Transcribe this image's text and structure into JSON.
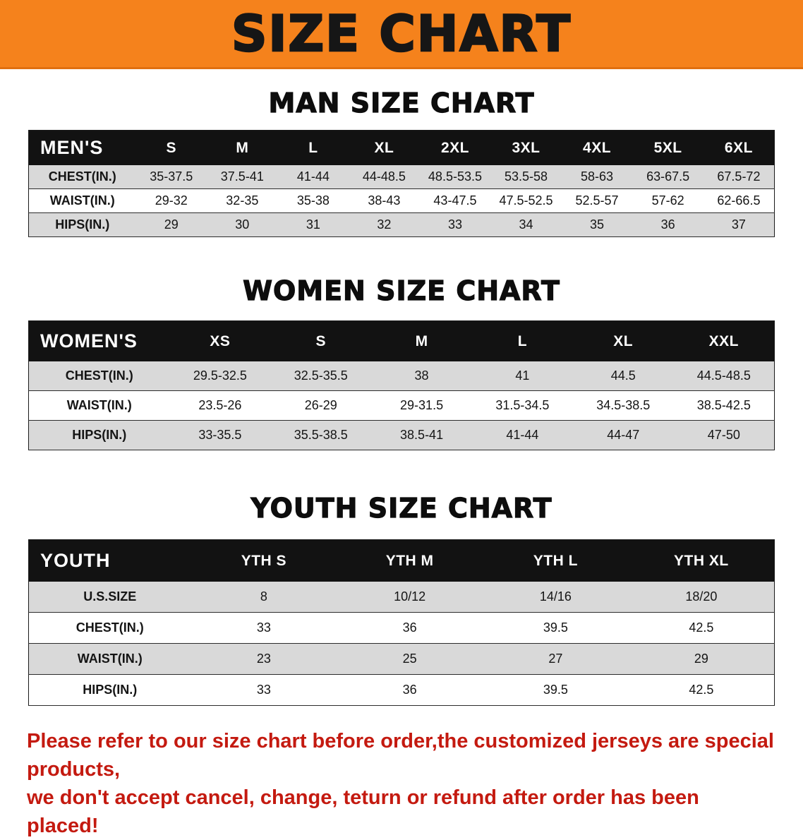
{
  "banner": {
    "title": "SIZE CHART"
  },
  "colors": {
    "banner_bg": "#f5821c",
    "table_header_bg": "#121212",
    "row_alt_bg": "#d9d9d9",
    "disclaimer_text": "#c41a10"
  },
  "sections": {
    "men": {
      "title": "MAN SIZE CHART",
      "table": {
        "header": [
          "MEN'S",
          "S",
          "M",
          "L",
          "XL",
          "2XL",
          "3XL",
          "4XL",
          "5XL",
          "6XL"
        ],
        "rows": [
          [
            "CHEST(IN.)",
            "35-37.5",
            "37.5-41",
            "41-44",
            "44-48.5",
            "48.5-53.5",
            "53.5-58",
            "58-63",
            "63-67.5",
            "67.5-72"
          ],
          [
            "WAIST(IN.)",
            "29-32",
            "32-35",
            "35-38",
            "38-43",
            "43-47.5",
            "47.5-52.5",
            "52.5-57",
            "57-62",
            "62-66.5"
          ],
          [
            "HIPS(IN.)",
            "29",
            "30",
            "31",
            "32",
            "33",
            "34",
            "35",
            "36",
            "37"
          ]
        ]
      }
    },
    "women": {
      "title": "WOMEN SIZE CHART",
      "table": {
        "header": [
          "WOMEN'S",
          "XS",
          "S",
          "M",
          "L",
          "XL",
          "XXL"
        ],
        "rows": [
          [
            "CHEST(IN.)",
            "29.5-32.5",
            "32.5-35.5",
            "38",
            "41",
            "44.5",
            "44.5-48.5"
          ],
          [
            "WAIST(IN.)",
            "23.5-26",
            "26-29",
            "29-31.5",
            "31.5-34.5",
            "34.5-38.5",
            "38.5-42.5"
          ],
          [
            "HIPS(IN.)",
            "33-35.5",
            "35.5-38.5",
            "38.5-41",
            "41-44",
            "44-47",
            "47-50"
          ]
        ]
      }
    },
    "youth": {
      "title": "YOUTH SIZE CHART",
      "table": {
        "header": [
          "YOUTH",
          "YTH S",
          "YTH M",
          "YTH L",
          "YTH XL"
        ],
        "rows": [
          [
            "U.S.SIZE",
            "8",
            "10/12",
            "14/16",
            "18/20"
          ],
          [
            "CHEST(IN.)",
            "33",
            "36",
            "39.5",
            "42.5"
          ],
          [
            "WAIST(IN.)",
            "23",
            "25",
            "27",
            "29"
          ],
          [
            "HIPS(IN.)",
            "33",
            "36",
            "39.5",
            "42.5"
          ]
        ]
      }
    }
  },
  "footer": {
    "line1": "Please refer to our size chart before order,the customized jerseys are special products,",
    "line2": "we don't accept cancel, change, teturn or refund after order has been placed!"
  }
}
